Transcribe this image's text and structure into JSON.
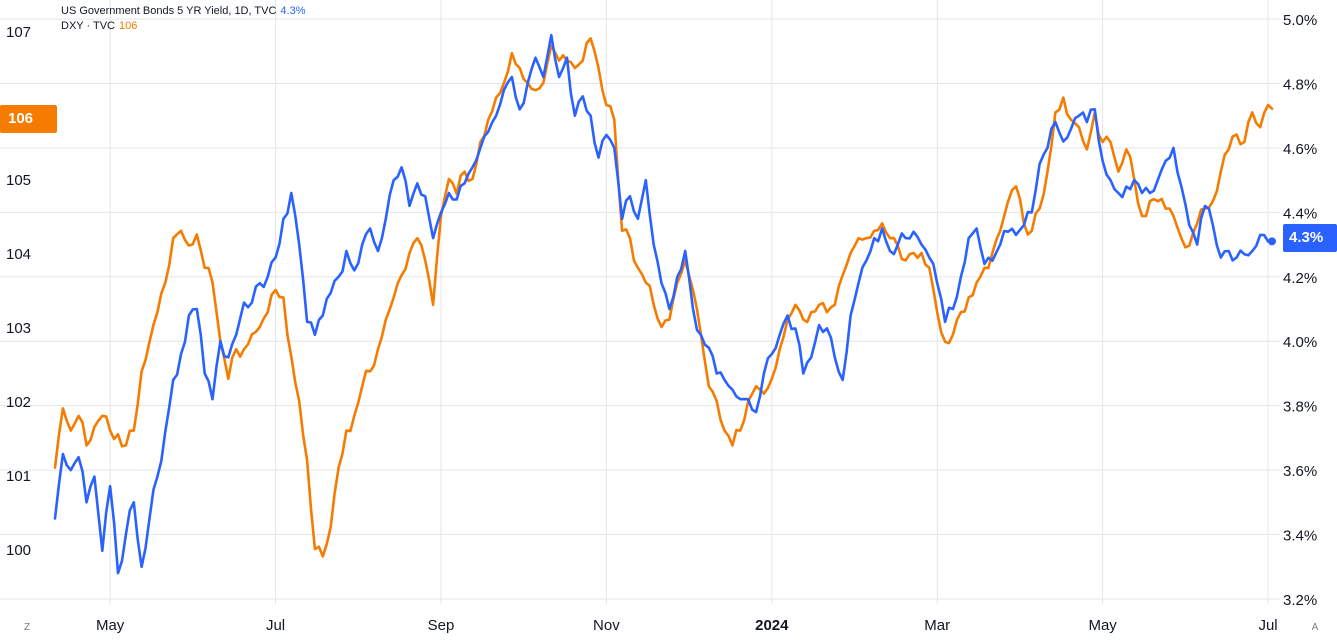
{
  "legend": {
    "series1_label": "US Government Bonds 5 YR Yield, 1D, TVC",
    "series1_value": "4.3%",
    "series2_label": "DXY · TVC",
    "series2_value": "106"
  },
  "badges": {
    "left_value": "106",
    "right_value": "4.3%"
  },
  "corner_buttons": {
    "left": "Z",
    "right": "A"
  },
  "colors": {
    "yield": "#2962ff",
    "dxy": "#f57c00"
  },
  "chart_data": {
    "type": "line",
    "x_ticks": [
      "May",
      "Jul",
      "Sep",
      "Nov",
      "2024",
      "Mar",
      "May",
      "Jul"
    ],
    "x_tick_idx": [
      14,
      56,
      98,
      140,
      182,
      224,
      266,
      308
    ],
    "left_axis": {
      "ticks": [
        "100",
        "101",
        "102",
        "103",
        "104",
        "105",
        "107"
      ],
      "range": [
        99.25,
        107.15
      ]
    },
    "right_axis": {
      "ticks": [
        "3.2%",
        "3.4%",
        "3.6%",
        "3.8%",
        "4.0%",
        "4.2%",
        "4.4%",
        "4.6%",
        "4.8%",
        "5.0%"
      ],
      "range": [
        3.2,
        5.0
      ]
    },
    "grid": true,
    "series": [
      {
        "name": "US Government Bonds 5 YR Yield, 1D, TVC",
        "axis": "right",
        "color": "#2962ff",
        "key": [
          [
            0,
            3.45
          ],
          [
            2,
            3.65
          ],
          [
            4,
            3.6
          ],
          [
            6,
            3.64
          ],
          [
            8,
            3.5
          ],
          [
            10,
            3.58
          ],
          [
            12,
            3.35
          ],
          [
            14,
            3.55
          ],
          [
            16,
            3.28
          ],
          [
            18,
            3.4
          ],
          [
            20,
            3.5
          ],
          [
            22,
            3.3
          ],
          [
            24,
            3.45
          ],
          [
            26,
            3.58
          ],
          [
            28,
            3.72
          ],
          [
            30,
            3.88
          ],
          [
            32,
            3.96
          ],
          [
            34,
            4.08
          ],
          [
            36,
            4.1
          ],
          [
            38,
            3.9
          ],
          [
            40,
            3.82
          ],
          [
            42,
            4.0
          ],
          [
            44,
            3.95
          ],
          [
            46,
            4.02
          ],
          [
            48,
            4.12
          ],
          [
            50,
            4.12
          ],
          [
            52,
            4.18
          ],
          [
            54,
            4.2
          ],
          [
            56,
            4.26
          ],
          [
            58,
            4.38
          ],
          [
            60,
            4.46
          ],
          [
            62,
            4.3
          ],
          [
            64,
            4.06
          ],
          [
            66,
            4.02
          ],
          [
            68,
            4.08
          ],
          [
            70,
            4.15
          ],
          [
            72,
            4.2
          ],
          [
            74,
            4.28
          ],
          [
            76,
            4.22
          ],
          [
            78,
            4.3
          ],
          [
            80,
            4.35
          ],
          [
            82,
            4.28
          ],
          [
            84,
            4.38
          ],
          [
            86,
            4.5
          ],
          [
            88,
            4.54
          ],
          [
            90,
            4.42
          ],
          [
            92,
            4.49
          ],
          [
            94,
            4.45
          ],
          [
            96,
            4.32
          ],
          [
            98,
            4.4
          ],
          [
            100,
            4.46
          ],
          [
            102,
            4.44
          ],
          [
            104,
            4.49
          ],
          [
            106,
            4.54
          ],
          [
            108,
            4.6
          ],
          [
            110,
            4.65
          ],
          [
            112,
            4.7
          ],
          [
            114,
            4.78
          ],
          [
            116,
            4.82
          ],
          [
            118,
            4.72
          ],
          [
            120,
            4.8
          ],
          [
            122,
            4.88
          ],
          [
            124,
            4.82
          ],
          [
            126,
            4.95
          ],
          [
            128,
            4.82
          ],
          [
            130,
            4.88
          ],
          [
            132,
            4.7
          ],
          [
            134,
            4.76
          ],
          [
            136,
            4.7
          ],
          [
            138,
            4.57
          ],
          [
            140,
            4.64
          ],
          [
            142,
            4.6
          ],
          [
            144,
            4.38
          ],
          [
            146,
            4.45
          ],
          [
            148,
            4.38
          ],
          [
            150,
            4.5
          ],
          [
            152,
            4.3
          ],
          [
            154,
            4.18
          ],
          [
            156,
            4.1
          ],
          [
            158,
            4.2
          ],
          [
            160,
            4.28
          ],
          [
            162,
            4.1
          ],
          [
            164,
            4.02
          ],
          [
            166,
            3.98
          ],
          [
            168,
            3.9
          ],
          [
            170,
            3.88
          ],
          [
            172,
            3.85
          ],
          [
            174,
            3.82
          ],
          [
            176,
            3.82
          ],
          [
            178,
            3.78
          ],
          [
            180,
            3.9
          ],
          [
            182,
            3.96
          ],
          [
            184,
            4.02
          ],
          [
            186,
            4.08
          ],
          [
            188,
            4.04
          ],
          [
            190,
            3.9
          ],
          [
            192,
            3.95
          ],
          [
            194,
            4.05
          ],
          [
            196,
            4.04
          ],
          [
            198,
            3.95
          ],
          [
            200,
            3.88
          ],
          [
            202,
            4.08
          ],
          [
            204,
            4.18
          ],
          [
            206,
            4.25
          ],
          [
            208,
            4.32
          ],
          [
            210,
            4.35
          ],
          [
            212,
            4.28
          ],
          [
            214,
            4.3
          ],
          [
            216,
            4.32
          ],
          [
            218,
            4.34
          ],
          [
            220,
            4.3
          ],
          [
            222,
            4.26
          ],
          [
            224,
            4.18
          ],
          [
            226,
            4.06
          ],
          [
            228,
            4.1
          ],
          [
            230,
            4.2
          ],
          [
            232,
            4.32
          ],
          [
            234,
            4.35
          ],
          [
            236,
            4.24
          ],
          [
            238,
            4.25
          ],
          [
            240,
            4.3
          ],
          [
            242,
            4.34
          ],
          [
            244,
            4.33
          ],
          [
            246,
            4.36
          ],
          [
            248,
            4.4
          ],
          [
            250,
            4.55
          ],
          [
            252,
            4.6
          ],
          [
            254,
            4.68
          ],
          [
            256,
            4.62
          ],
          [
            258,
            4.66
          ],
          [
            260,
            4.7
          ],
          [
            262,
            4.68
          ],
          [
            264,
            4.72
          ],
          [
            266,
            4.56
          ],
          [
            268,
            4.5
          ],
          [
            270,
            4.46
          ],
          [
            272,
            4.48
          ],
          [
            274,
            4.5
          ],
          [
            276,
            4.46
          ],
          [
            278,
            4.46
          ],
          [
            280,
            4.5
          ],
          [
            282,
            4.56
          ],
          [
            284,
            4.6
          ],
          [
            286,
            4.48
          ],
          [
            288,
            4.36
          ],
          [
            290,
            4.3
          ],
          [
            292,
            4.42
          ],
          [
            294,
            4.36
          ],
          [
            296,
            4.26
          ],
          [
            298,
            4.28
          ],
          [
            300,
            4.26
          ],
          [
            302,
            4.27
          ],
          [
            304,
            4.28
          ],
          [
            306,
            4.33
          ],
          [
            308,
            4.31
          ],
          [
            309,
            4.31
          ]
        ]
      },
      {
        "name": "DXY · TVC",
        "axis": "left",
        "color": "#f57c00",
        "key": [
          [
            0,
            101.1
          ],
          [
            2,
            101.9
          ],
          [
            4,
            101.6
          ],
          [
            6,
            101.8
          ],
          [
            8,
            101.4
          ],
          [
            10,
            101.65
          ],
          [
            12,
            101.8
          ],
          [
            14,
            101.6
          ],
          [
            16,
            101.55
          ],
          [
            18,
            101.4
          ],
          [
            20,
            101.6
          ],
          [
            22,
            102.4
          ],
          [
            24,
            102.8
          ],
          [
            26,
            103.2
          ],
          [
            28,
            103.6
          ],
          [
            30,
            104.2
          ],
          [
            32,
            104.3
          ],
          [
            34,
            104.1
          ],
          [
            36,
            104.25
          ],
          [
            38,
            103.8
          ],
          [
            40,
            103.6
          ],
          [
            42,
            102.8
          ],
          [
            44,
            102.3
          ],
          [
            46,
            102.7
          ],
          [
            48,
            102.7
          ],
          [
            50,
            102.9
          ],
          [
            52,
            103.0
          ],
          [
            54,
            103.2
          ],
          [
            56,
            103.5
          ],
          [
            58,
            103.4
          ],
          [
            60,
            102.6
          ],
          [
            62,
            102.0
          ],
          [
            64,
            101.2
          ],
          [
            66,
            100.0
          ],
          [
            68,
            99.9
          ],
          [
            70,
            100.3
          ],
          [
            72,
            101.1
          ],
          [
            74,
            101.6
          ],
          [
            76,
            101.8
          ],
          [
            78,
            102.2
          ],
          [
            80,
            102.4
          ],
          [
            82,
            102.7
          ],
          [
            84,
            103.1
          ],
          [
            86,
            103.4
          ],
          [
            88,
            103.7
          ],
          [
            90,
            104.0
          ],
          [
            92,
            104.2
          ],
          [
            94,
            103.9
          ],
          [
            96,
            103.3
          ],
          [
            98,
            104.5
          ],
          [
            100,
            105.0
          ],
          [
            102,
            104.8
          ],
          [
            104,
            105.1
          ],
          [
            106,
            105.0
          ],
          [
            108,
            105.5
          ],
          [
            110,
            105.8
          ],
          [
            112,
            106.1
          ],
          [
            114,
            106.3
          ],
          [
            116,
            106.7
          ],
          [
            118,
            106.5
          ],
          [
            120,
            106.3
          ],
          [
            122,
            106.2
          ],
          [
            124,
            106.3
          ],
          [
            126,
            106.8
          ],
          [
            128,
            106.6
          ],
          [
            130,
            106.6
          ],
          [
            132,
            106.5
          ],
          [
            134,
            106.6
          ],
          [
            136,
            106.9
          ],
          [
            138,
            106.5
          ],
          [
            140,
            106.0
          ],
          [
            142,
            105.8
          ],
          [
            144,
            104.3
          ],
          [
            146,
            104.2
          ],
          [
            148,
            103.8
          ],
          [
            150,
            103.6
          ],
          [
            152,
            103.3
          ],
          [
            154,
            103.0
          ],
          [
            156,
            103.1
          ],
          [
            158,
            103.6
          ],
          [
            160,
            103.9
          ],
          [
            162,
            103.5
          ],
          [
            164,
            102.9
          ],
          [
            166,
            102.2
          ],
          [
            168,
            102.0
          ],
          [
            170,
            101.6
          ],
          [
            172,
            101.4
          ],
          [
            174,
            101.6
          ],
          [
            176,
            102.0
          ],
          [
            178,
            102.2
          ],
          [
            180,
            102.1
          ],
          [
            182,
            102.3
          ],
          [
            184,
            102.7
          ],
          [
            186,
            103.1
          ],
          [
            188,
            103.3
          ],
          [
            190,
            103.1
          ],
          [
            192,
            103.2
          ],
          [
            194,
            103.3
          ],
          [
            196,
            103.2
          ],
          [
            198,
            103.3
          ],
          [
            200,
            103.7
          ],
          [
            202,
            104.0
          ],
          [
            204,
            104.2
          ],
          [
            206,
            104.2
          ],
          [
            208,
            104.3
          ],
          [
            210,
            104.4
          ],
          [
            212,
            104.2
          ],
          [
            214,
            104.1
          ],
          [
            216,
            103.9
          ],
          [
            218,
            104.0
          ],
          [
            220,
            104.0
          ],
          [
            222,
            103.8
          ],
          [
            224,
            103.2
          ],
          [
            226,
            102.8
          ],
          [
            228,
            102.9
          ],
          [
            230,
            103.2
          ],
          [
            232,
            103.4
          ],
          [
            234,
            103.6
          ],
          [
            236,
            103.8
          ],
          [
            238,
            104.0
          ],
          [
            240,
            104.3
          ],
          [
            242,
            104.7
          ],
          [
            244,
            104.9
          ],
          [
            246,
            104.4
          ],
          [
            248,
            104.3
          ],
          [
            250,
            104.6
          ],
          [
            252,
            105.1
          ],
          [
            254,
            105.9
          ],
          [
            256,
            106.1
          ],
          [
            258,
            105.8
          ],
          [
            260,
            105.7
          ],
          [
            262,
            105.4
          ],
          [
            264,
            105.9
          ],
          [
            266,
            105.5
          ],
          [
            268,
            105.5
          ],
          [
            270,
            105.1
          ],
          [
            272,
            105.4
          ],
          [
            274,
            105.0
          ],
          [
            276,
            104.5
          ],
          [
            278,
            104.7
          ],
          [
            280,
            104.7
          ],
          [
            282,
            104.6
          ],
          [
            284,
            104.5
          ],
          [
            286,
            104.2
          ],
          [
            288,
            104.1
          ],
          [
            290,
            104.4
          ],
          [
            292,
            104.6
          ],
          [
            294,
            104.7
          ],
          [
            296,
            105.1
          ],
          [
            298,
            105.4
          ],
          [
            300,
            105.6
          ],
          [
            302,
            105.5
          ],
          [
            304,
            105.9
          ],
          [
            306,
            105.7
          ],
          [
            308,
            106.0
          ],
          [
            309,
            105.95
          ]
        ]
      }
    ]
  }
}
